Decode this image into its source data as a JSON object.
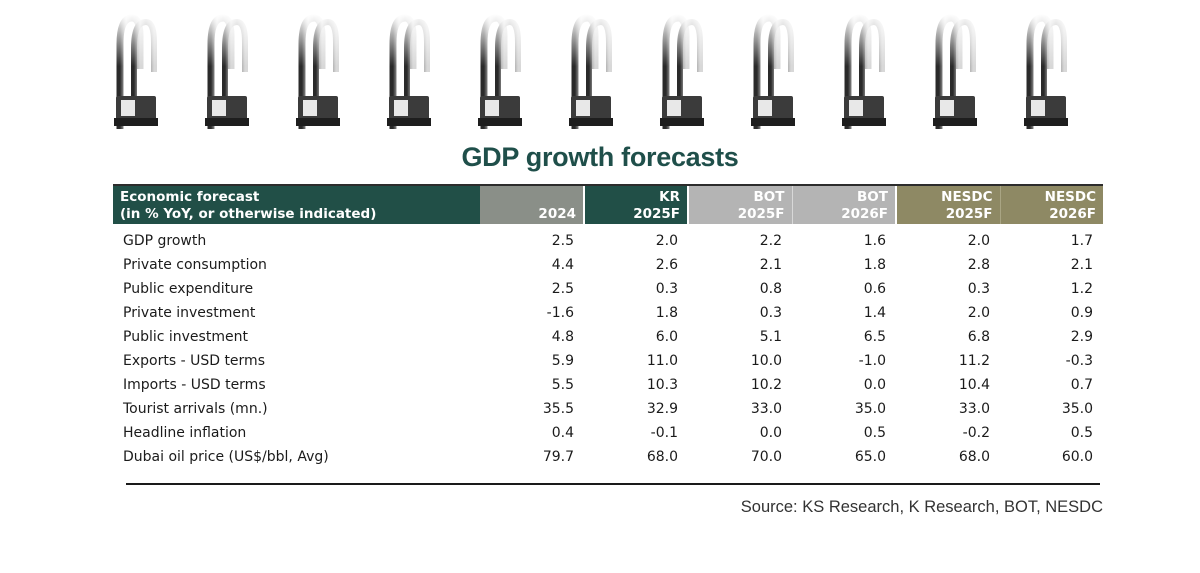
{
  "title": "GDP growth forecasts",
  "table": {
    "header_label_line1": "Economic forecast",
    "header_label_line2": "(in % YoY, or otherwise indicated)",
    "columns": [
      {
        "org": "",
        "period": "2024"
      },
      {
        "org": "KR",
        "period": "2025F"
      },
      {
        "org": "BOT",
        "period": "2025F"
      },
      {
        "org": "BOT",
        "period": "2026F"
      },
      {
        "org": "NESDC",
        "period": "2025F"
      },
      {
        "org": "NESDC",
        "period": "2026F"
      }
    ],
    "rows": [
      {
        "label": "GDP growth",
        "values": [
          "2.5",
          "2.0",
          "2.2",
          "1.6",
          "2.0",
          "1.7"
        ]
      },
      {
        "label": "Private consumption",
        "values": [
          "4.4",
          "2.6",
          "2.1",
          "1.8",
          "2.8",
          "2.1"
        ]
      },
      {
        "label": "Public expenditure",
        "values": [
          "2.5",
          "0.3",
          "0.8",
          "0.6",
          "0.3",
          "1.2"
        ]
      },
      {
        "label": "Private investment",
        "values": [
          "-1.6",
          "1.8",
          "0.3",
          "1.4",
          "2.0",
          "0.9"
        ]
      },
      {
        "label": "Public investment",
        "values": [
          "4.8",
          "6.0",
          "5.1",
          "6.5",
          "6.8",
          "2.9"
        ]
      },
      {
        "label": "Exports - USD terms",
        "values": [
          "5.9",
          "11.0",
          "10.0",
          "-1.0",
          "11.2",
          "-0.3"
        ]
      },
      {
        "label": "Imports - USD terms",
        "values": [
          "5.5",
          "10.3",
          "10.2",
          "0.0",
          "10.4",
          "0.7"
        ]
      },
      {
        "label": "Tourist arrivals (mn.)",
        "values": [
          "35.5",
          "32.9",
          "33.0",
          "35.0",
          "33.0",
          "35.0"
        ]
      },
      {
        "label": "Headline inflation",
        "values": [
          "0.4",
          "-0.1",
          "0.0",
          "0.5",
          "-0.2",
          "0.5"
        ]
      },
      {
        "label": "Dubai oil price (US$/bbl, Avg)",
        "values": [
          "79.7",
          "68.0",
          "70.0",
          "65.0",
          "68.0",
          "60.0"
        ]
      }
    ]
  },
  "source": "Source: KS Research, K Research, BOT, NESDC",
  "colors": {
    "title": "#1f4f4a",
    "header_green": "#214f47",
    "header_grey": "#b4b4b4",
    "header_olive": "#8e8964",
    "header_taupe": "#8a8f88"
  },
  "decoration": {
    "binder_ring_icon_count": 11
  }
}
